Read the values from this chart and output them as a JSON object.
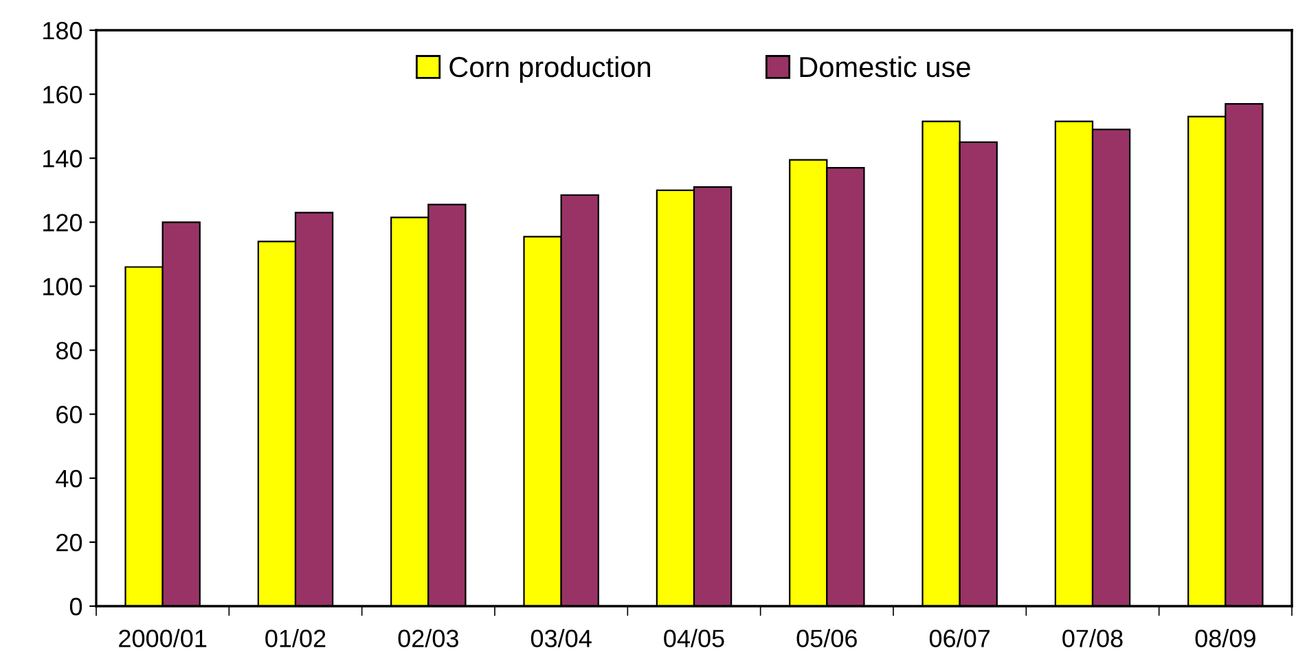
{
  "chart_data": {
    "type": "bar",
    "categories": [
      "2000/01",
      "01/02",
      "02/03",
      "03/04",
      "04/05",
      "05/06",
      "06/07",
      "07/08",
      "08/09"
    ],
    "series": [
      {
        "name": "Corn production",
        "color": "#ffff00",
        "values": [
          106,
          114,
          121.5,
          115.5,
          130,
          139.5,
          151.5,
          151.5,
          153
        ]
      },
      {
        "name": "Domestic use",
        "color": "#993366",
        "values": [
          120,
          123,
          125.5,
          128.5,
          131,
          137,
          145,
          149,
          157
        ]
      }
    ],
    "ylim": [
      0,
      180
    ],
    "yticks": [
      0,
      20,
      40,
      60,
      80,
      100,
      120,
      140,
      160,
      180
    ],
    "grid": false,
    "legend": "top"
  }
}
